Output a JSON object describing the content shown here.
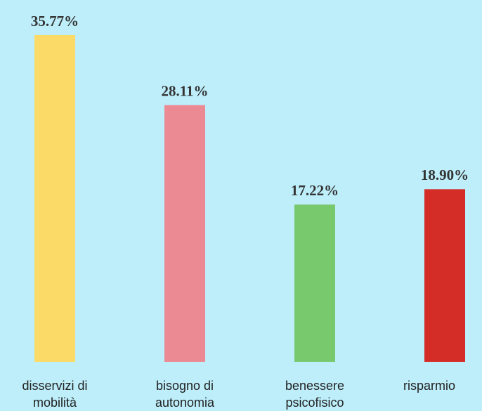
{
  "chart_data": {
    "type": "bar",
    "categories": [
      "disservizi di mobilità",
      "bisogno di autonomia",
      "benessere psicofisico",
      "risparmio"
    ],
    "values": [
      35.77,
      28.11,
      17.22,
      18.9
    ],
    "value_labels": [
      "35.77%",
      "28.11%",
      "17.22%",
      "18.90%"
    ],
    "colors": [
      "#fcda68",
      "#ec8a94",
      "#78c86e",
      "#d42d28"
    ]
  }
}
